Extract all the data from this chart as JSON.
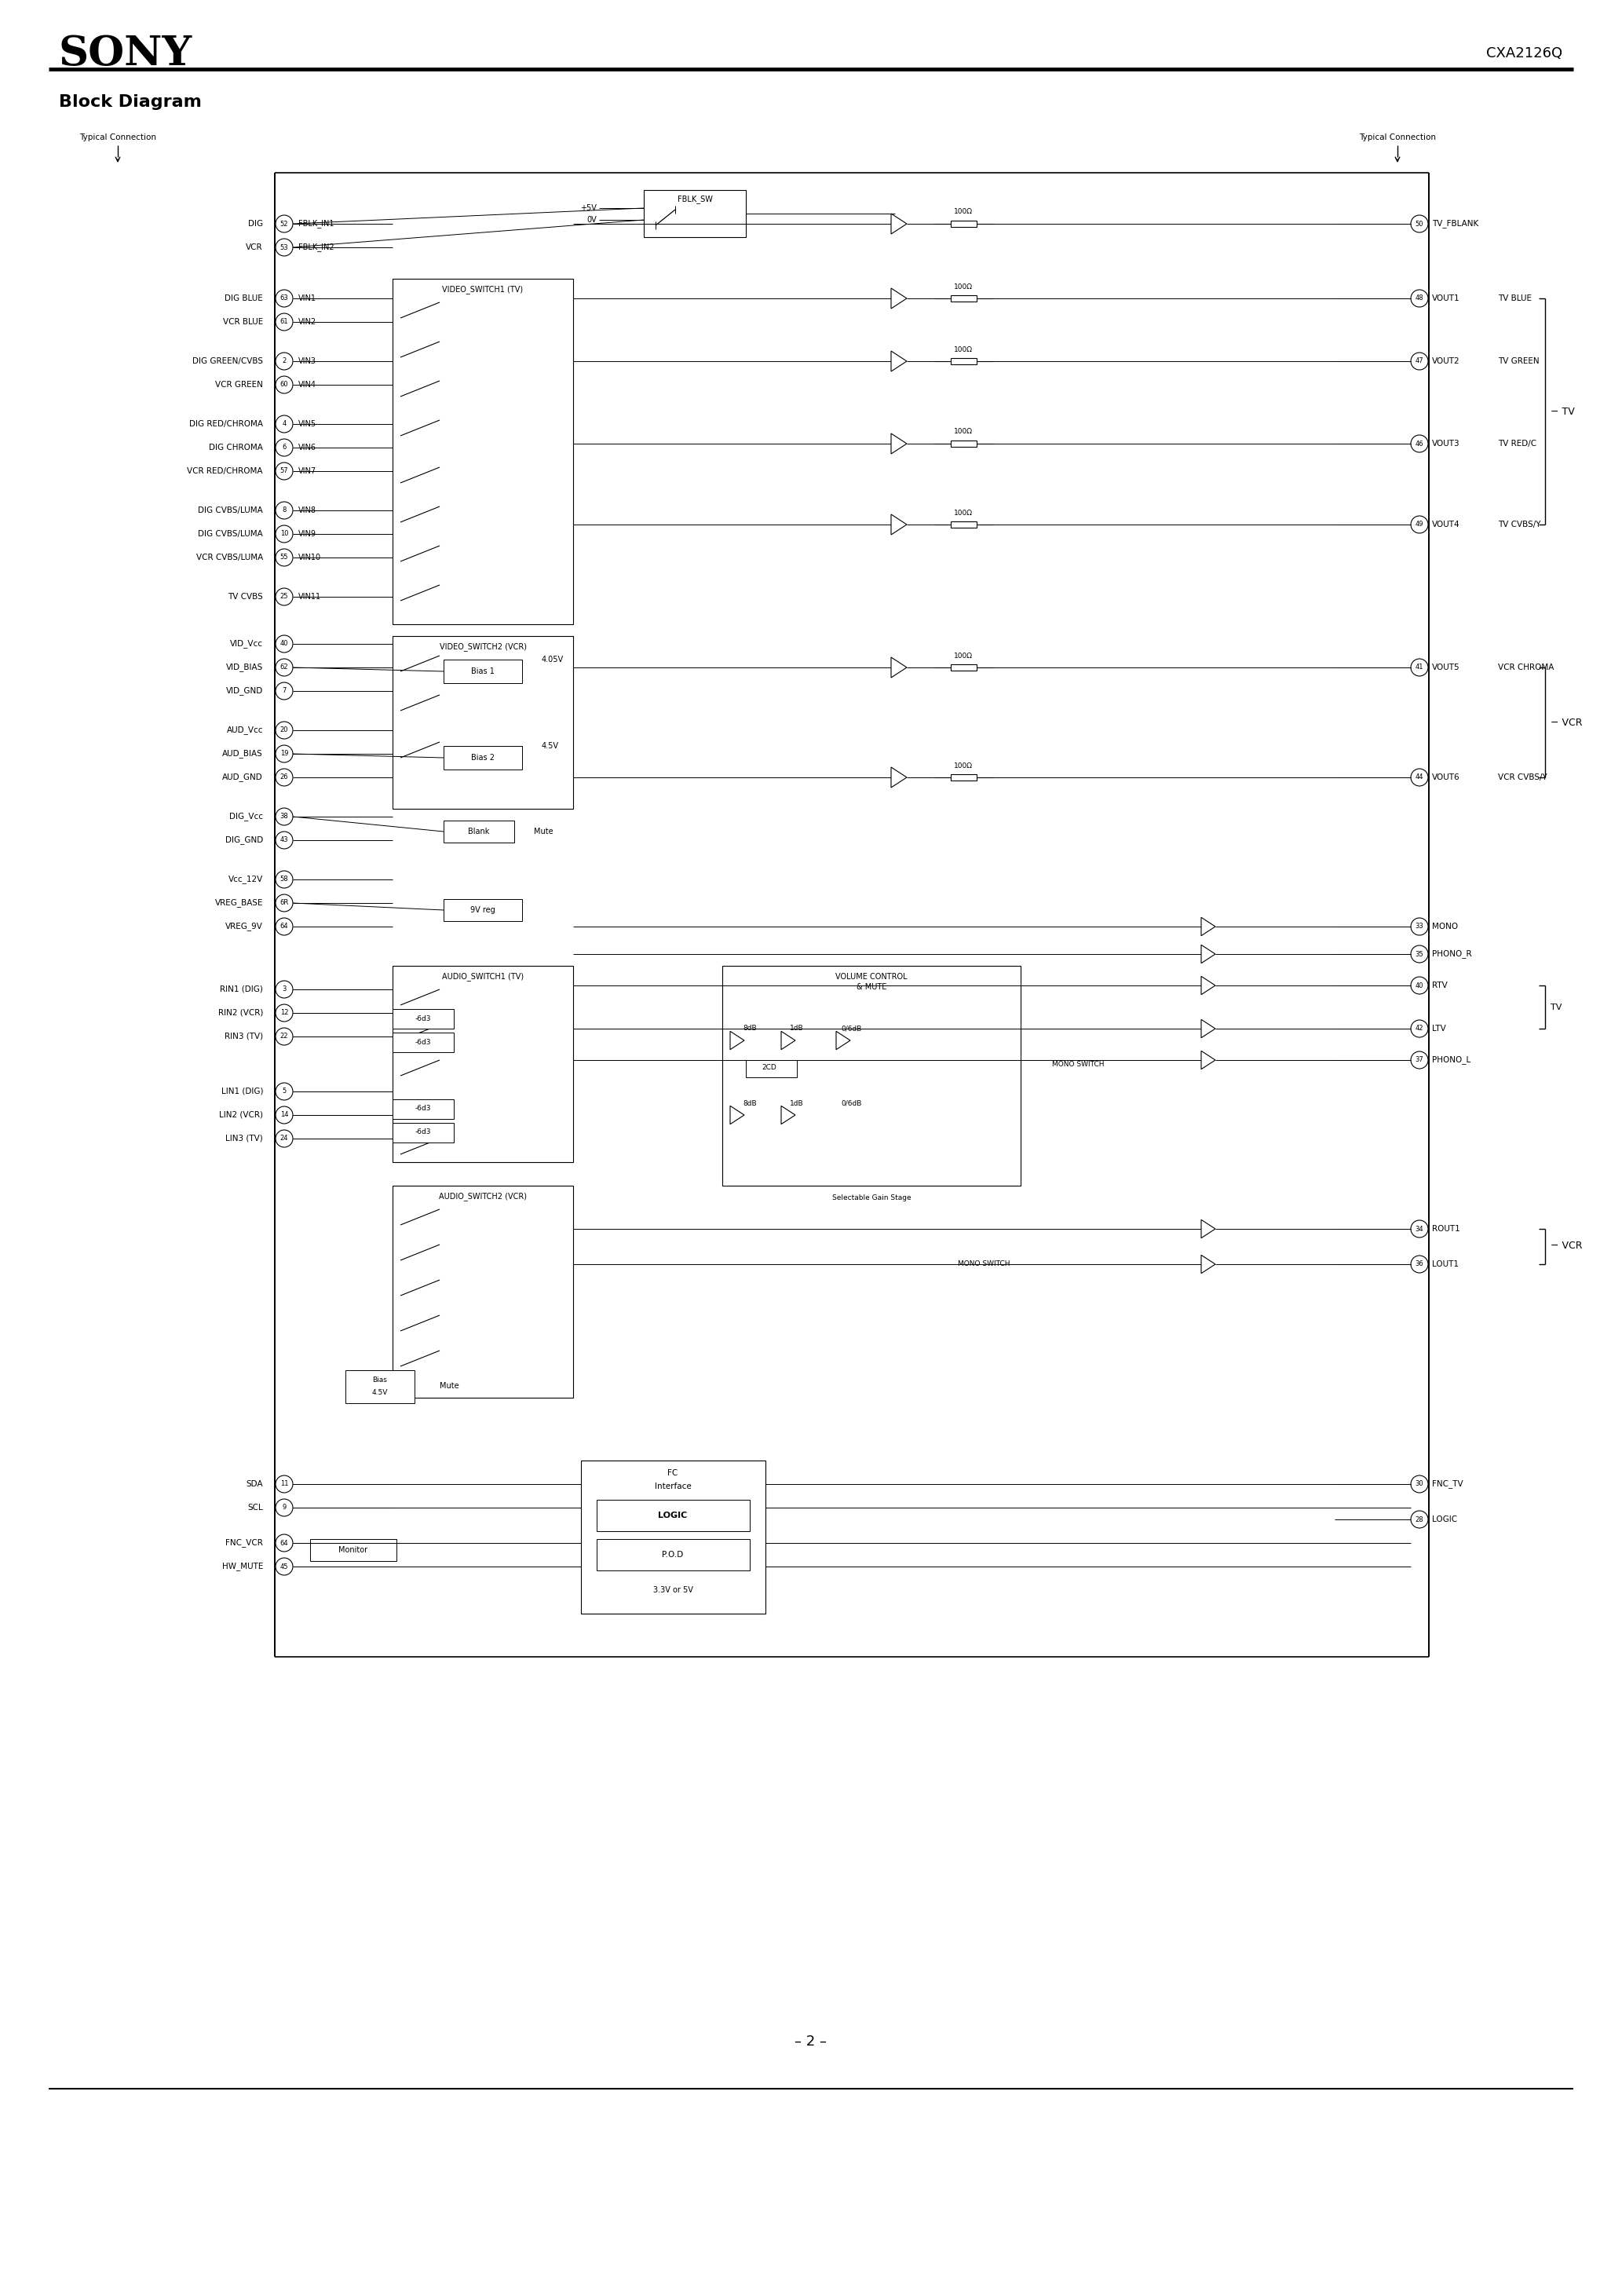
{
  "page_bg": "#ffffff",
  "title_sony": "SONY",
  "title_part": "CXA2126Q",
  "section_title": "Block Diagram",
  "page_number": "– 2 –"
}
